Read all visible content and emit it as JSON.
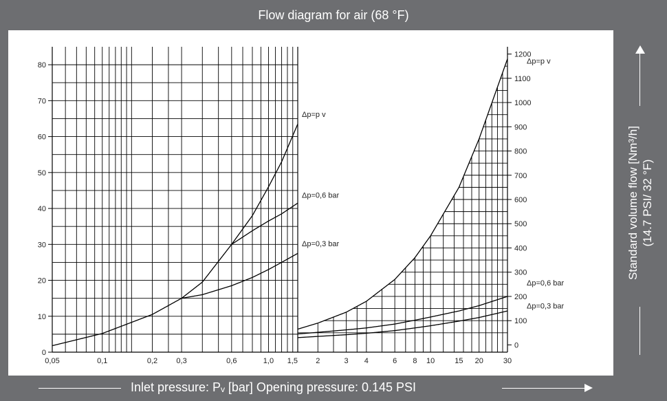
{
  "header": {
    "title": "Flow diagram for air (68 °F)"
  },
  "footer": {
    "xlabel": "Inlet pressure: Pᵥ [bar] Opening pressure: 0.145 PSI"
  },
  "side": {
    "ylabel_line1": "Standard volume flow [Nm³/h]",
    "ylabel_line2": "(14.7 PSI/ 32 °F)"
  },
  "colors": {
    "frame": "#6d6e71",
    "plot_bg": "#ffffff",
    "grid": "#000000"
  },
  "chart_data": [
    {
      "panel": "left",
      "type": "line",
      "x_scale": "log",
      "xlim": [
        0.05,
        1.5
      ],
      "ylim": [
        0,
        85
      ],
      "x_ticks": [
        0.05,
        0.1,
        0.2,
        0.3,
        0.6,
        1.0,
        1.5
      ],
      "x_tick_labels": [
        "0,05",
        "0,1",
        "0,2",
        "0,3",
        "0,6",
        "1,0",
        "1,5"
      ],
      "y_ticks": [
        0,
        10,
        20,
        30,
        40,
        50,
        60,
        70,
        80
      ],
      "y_tick_labels": [
        "0",
        "10",
        "20",
        "30",
        "40",
        "50",
        "60",
        "70",
        "80"
      ],
      "grid": true,
      "series": [
        {
          "name": "Δp=p v",
          "x": [
            0.05,
            0.1,
            0.2,
            0.3,
            0.4,
            0.6,
            0.8,
            1.0,
            1.2,
            1.5
          ],
          "y": [
            1.8,
            5.2,
            10.5,
            15.0,
            19.5,
            30.0,
            38.0,
            46.0,
            53.0,
            63.5
          ]
        },
        {
          "name": "Δp=0,6 bar",
          "x": [
            0.6,
            0.8,
            1.0,
            1.2,
            1.5
          ],
          "y": [
            30.0,
            33.8,
            36.5,
            38.5,
            41.5
          ]
        },
        {
          "name": "Δp=0,3 bar",
          "x": [
            0.3,
            0.4,
            0.6,
            0.8,
            1.0,
            1.2,
            1.5
          ],
          "y": [
            15.0,
            16.0,
            18.5,
            20.8,
            23.0,
            25.0,
            27.5
          ]
        }
      ]
    },
    {
      "panel": "right",
      "type": "line",
      "x_scale": "log",
      "xlim": [
        1.5,
        30
      ],
      "ylim": [
        -30,
        1230
      ],
      "x_ticks": [
        2,
        3,
        4,
        6,
        8,
        10,
        15,
        20,
        30
      ],
      "x_tick_labels": [
        "2",
        "3",
        "4",
        "6",
        "8",
        "10",
        "15",
        "20",
        "30"
      ],
      "y_ticks": [
        0,
        100,
        200,
        300,
        400,
        500,
        600,
        700,
        800,
        900,
        1000,
        1100,
        1200
      ],
      "y_tick_labels": [
        "0",
        "100",
        "200",
        "300",
        "400",
        "500",
        "600",
        "700",
        "800",
        "900",
        "1000",
        "1100",
        "1200"
      ],
      "grid": true,
      "series": [
        {
          "name": "Δp=p v",
          "x": [
            1.5,
            2,
            3,
            4,
            6,
            8,
            10,
            15,
            20,
            30
          ],
          "y": [
            65,
            90,
            135,
            180,
            270,
            360,
            450,
            650,
            850,
            1180
          ]
        },
        {
          "name": "Δp=0,6 bar",
          "x": [
            1.5,
            2,
            3,
            4,
            6,
            8,
            10,
            15,
            20,
            30
          ],
          "y": [
            45,
            52,
            62,
            70,
            86,
            102,
            115,
            140,
            162,
            200
          ]
        },
        {
          "name": "Δp=0,3 bar",
          "x": [
            1.5,
            2,
            3,
            4,
            6,
            8,
            10,
            15,
            20,
            30
          ],
          "y": [
            30,
            35,
            42,
            48,
            59,
            70,
            79,
            98,
            113,
            140
          ]
        }
      ],
      "labels": [
        "Δp=p v",
        "Δp=0,6 bar",
        "Δp=0,3 bar"
      ]
    }
  ]
}
